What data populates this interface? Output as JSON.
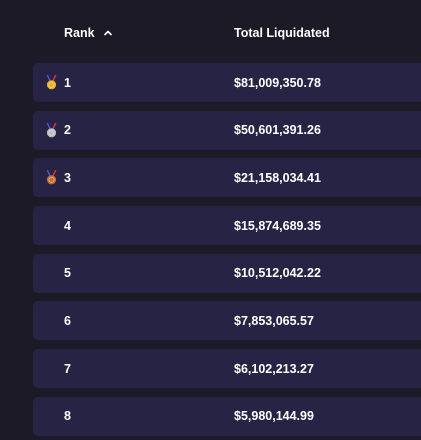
{
  "table": {
    "header": {
      "rank_label": "Rank",
      "total_label": "Total Liquidated",
      "sort_icon": "chevron-up-icon"
    },
    "rows": [
      {
        "rank": "1",
        "total": "$81,009,350.78",
        "medal": "gold-medal-icon"
      },
      {
        "rank": "2",
        "total": "$50,601,391.26",
        "medal": "silver-medal-icon"
      },
      {
        "rank": "3",
        "total": "$21,158,034.41",
        "medal": "bronze-medal-icon"
      },
      {
        "rank": "4",
        "total": "$15,874,689.35",
        "medal": ""
      },
      {
        "rank": "5",
        "total": "$10,512,042.22",
        "medal": ""
      },
      {
        "rank": "6",
        "total": "$7,853,065.57",
        "medal": ""
      },
      {
        "rank": "7",
        "total": "$6,102,213.27",
        "medal": ""
      },
      {
        "rank": "8",
        "total": "$5,980,144.99",
        "medal": ""
      }
    ]
  },
  "colors": {
    "background": "#1b1a26",
    "row_background": "#272345",
    "text": "#ffffff",
    "gold": "#e8b21e",
    "silver": "#b9bcc4",
    "bronze": "#c0713a",
    "ribbon": "#5a4fcf"
  }
}
